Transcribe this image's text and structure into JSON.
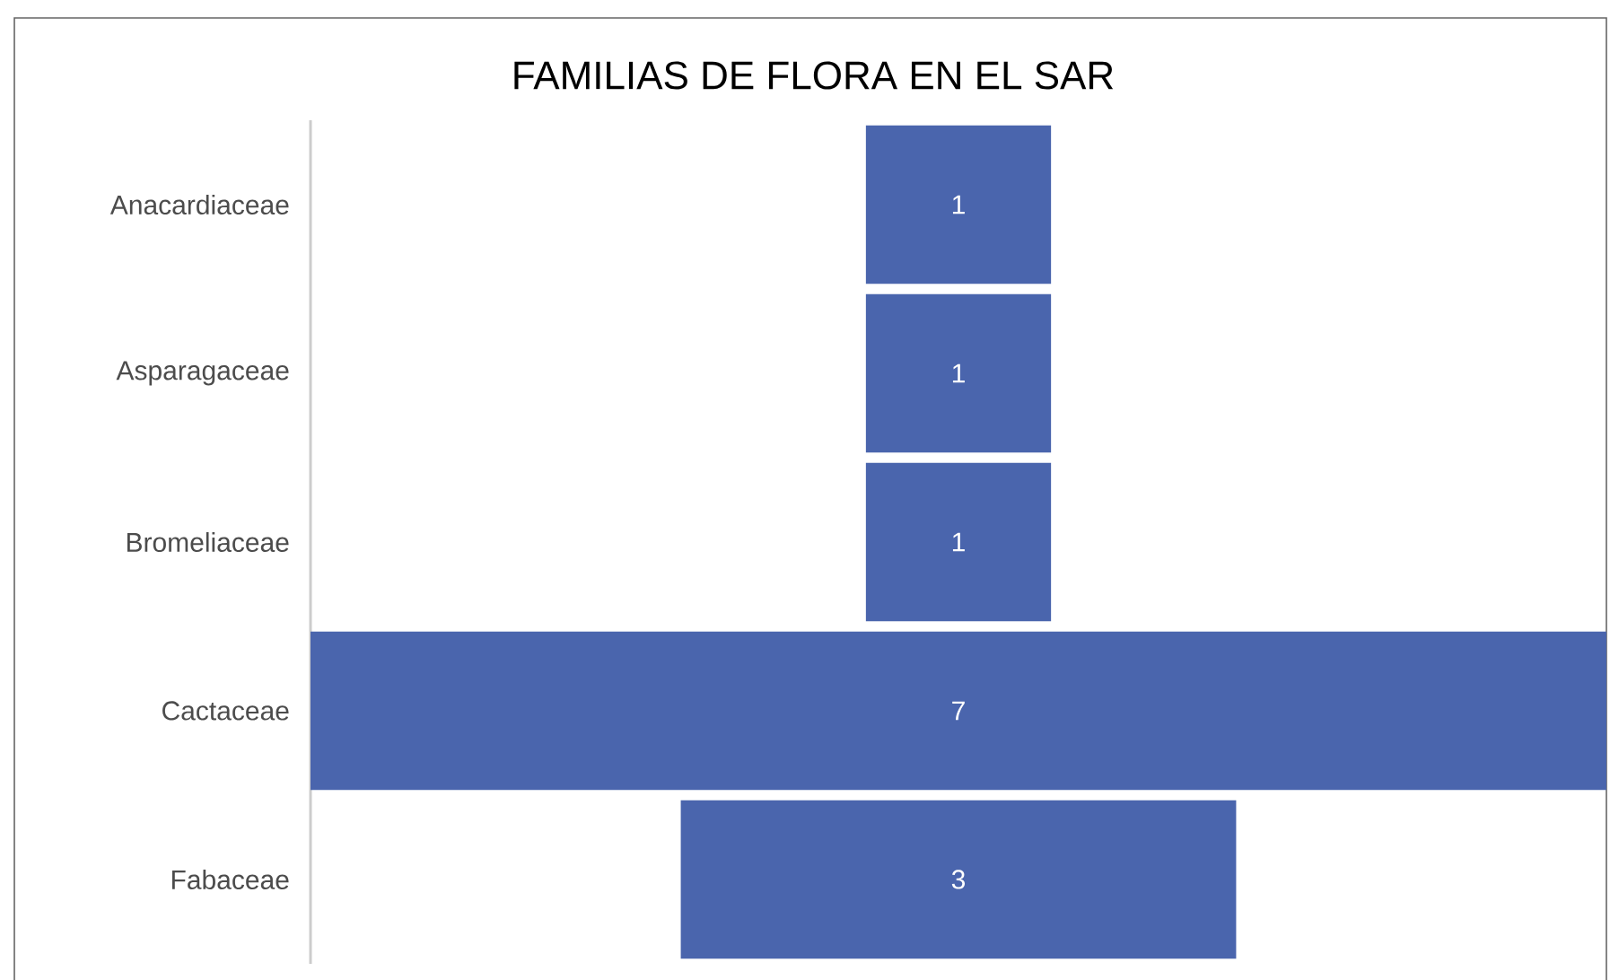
{
  "chart_data": {
    "type": "other",
    "title": "FAMILIAS DE FLORA EN EL SAR",
    "categories": [
      "Anacardiaceae",
      "Asparagaceae",
      "Bromeliaceae",
      "Cactaceae",
      "Fabaceae"
    ],
    "values": [
      1,
      1,
      1,
      7,
      3
    ],
    "color": "#4a65ad",
    "data_labels": true
  }
}
